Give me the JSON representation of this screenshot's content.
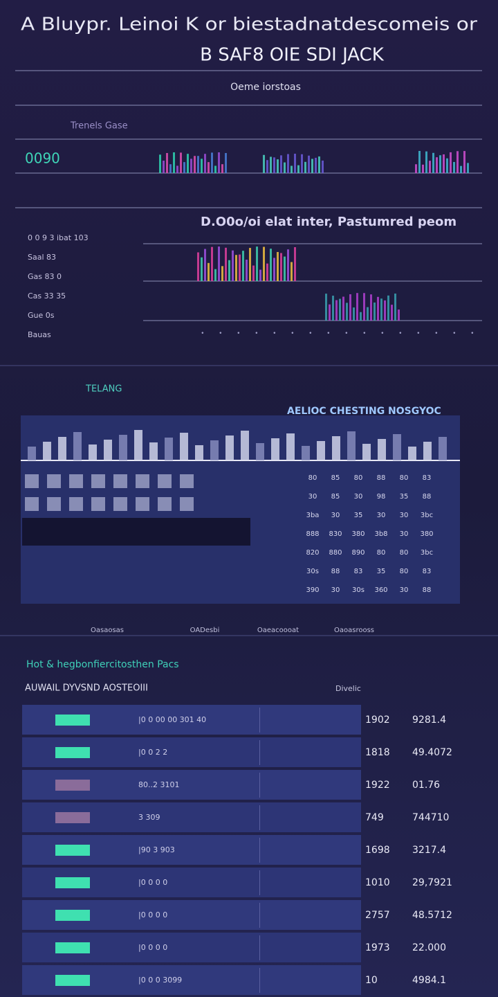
{
  "header": {
    "title": "A Bluypr. Leinoi K or biestadnatdescomeis or",
    "subtitle": "B SAF8 OIE SDI JACK",
    "caption": "Oeme iorstoas"
  },
  "stat": {
    "label": "Trenels Gase",
    "value": "0090"
  },
  "section": {
    "title": "D.O0o/oi elat inter, Pastumred peom",
    "rows": [
      "0 0 9 3 ibat 103",
      "Saal 83",
      "Gas 83 0",
      "Cas 33 35",
      "Gue 0s",
      "Bauas"
    ]
  },
  "panel": {
    "tag": "TELANG",
    "banner": "AELIOC CHESTING NOSGYOC",
    "grid": [
      [
        "80",
        "85",
        "80",
        "88",
        "80",
        "83"
      ],
      [
        "30",
        "85",
        "30",
        "98",
        "35",
        "88"
      ],
      [
        "3ba",
        "30",
        "35",
        "30",
        "30",
        "3bc"
      ],
      [
        "888",
        "830",
        "380",
        "3b8",
        "30",
        "380"
      ],
      [
        "820",
        "880",
        "890",
        "80",
        "80",
        "3bc"
      ],
      [
        "30s",
        "88",
        "83",
        "35",
        "80",
        "83"
      ],
      [
        "390",
        "30",
        "30s",
        "360",
        "30",
        "88"
      ]
    ]
  },
  "footer": [
    "Oasaosas",
    "OADesbi",
    "Oaeacoooat",
    "Oaoasrooss"
  ],
  "table": {
    "title": "Hot & hegbonfiercitosthen Pacs",
    "subtitle": "AUWAIL DYVSND AOSTEOIII",
    "side": "Divelic",
    "rows": [
      [
        "|0 0 00 00 301 40",
        "1902",
        "9281.4"
      ],
      [
        "|0 0 2 2",
        "1818",
        "49.4072"
      ],
      [
        "80..2 3101",
        "1922",
        "01.76"
      ],
      [
        "3 309",
        "749",
        "744710"
      ],
      [
        "|90 3 903",
        "1698",
        "3217.4"
      ],
      [
        "|0 0 0 0",
        "1010",
        "29,7921"
      ],
      [
        "|0 0 0 0",
        "2757",
        "48.5712"
      ],
      [
        "|0 0 0 0",
        "1973",
        "22.000"
      ],
      [
        "|0 0 0 3099",
        "10",
        "4984.1"
      ]
    ]
  }
}
